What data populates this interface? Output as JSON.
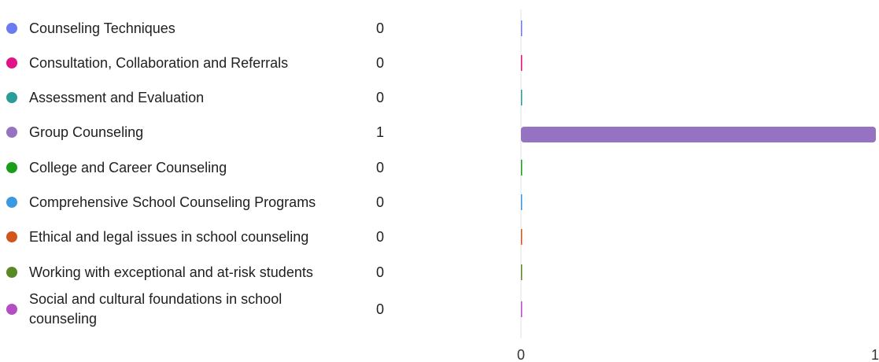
{
  "chart_data": {
    "type": "bar",
    "orientation": "horizontal",
    "categories": [
      "Counseling Techniques",
      "Consultation, Collaboration and Referrals",
      "Assessment and Evaluation",
      "Group Counseling",
      "College and Career Counseling",
      "Comprehensive School Counseling Programs",
      "Ethical and legal issues in school counseling",
      "Working with exceptional and at-risk students",
      "Social and cultural foundations in school counseling"
    ],
    "values": [
      0,
      0,
      0,
      1,
      0,
      0,
      0,
      0,
      0
    ],
    "colors": [
      "#6b7cf0",
      "#e3128a",
      "#2a9d9a",
      "#9673c2",
      "#1a9e1a",
      "#3a9ae0",
      "#d2561c",
      "#5a8a26",
      "#b44fc3"
    ],
    "xlim": [
      0,
      1
    ],
    "x_ticks": [
      "0",
      "1"
    ],
    "title": "",
    "xlabel": "",
    "ylabel": "",
    "legend": "left"
  }
}
